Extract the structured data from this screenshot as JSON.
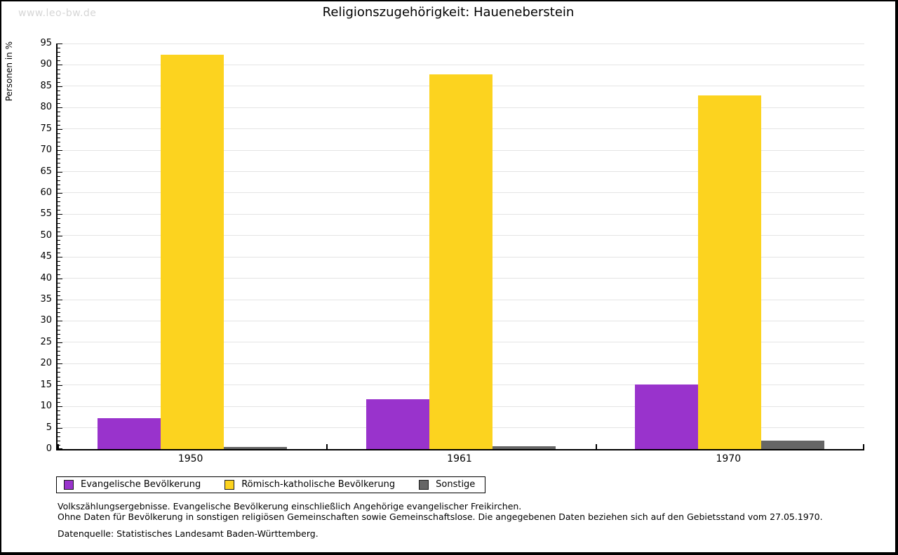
{
  "watermark": "www.leo-bw.de",
  "title": "Religionszugehörigkeit:  Haueneberstein",
  "chart_data": {
    "type": "bar",
    "title": "Religionszugehörigkeit: Haueneberstein",
    "xlabel": "",
    "ylabel": "Personen in %",
    "ylim": [
      0,
      95
    ],
    "ytick_step": 5,
    "ytick_minor_step": 1,
    "grid": true,
    "legend_position": "bottom-left",
    "categories": [
      "1950",
      "1961",
      "1970"
    ],
    "series": [
      {
        "name": "Evangelische Bevölkerung",
        "color": "#9933cc",
        "values": [
          7.2,
          11.7,
          15.1
        ]
      },
      {
        "name": "Römisch-katholische Bevölkerung",
        "color": "#fcd31f",
        "values": [
          92.3,
          87.7,
          82.9
        ]
      },
      {
        "name": "Sonstige",
        "color": "#666666",
        "values": [
          0.5,
          0.6,
          2.0
        ]
      }
    ]
  },
  "footnotes": {
    "line1": "Volkszählungsergebnisse. Evangelische Bevölkerung einschließlich Angehörige evangelischer Freikirchen.",
    "line2": "Ohne Daten für Bevölkerung in sonstigen religiösen Gemeinschaften sowie Gemeinschaftslose. Die angegebenen Daten beziehen sich auf den Gebietsstand vom 27.05.1970.",
    "source": "Datenquelle: Statistisches Landesamt Baden-Württemberg."
  }
}
